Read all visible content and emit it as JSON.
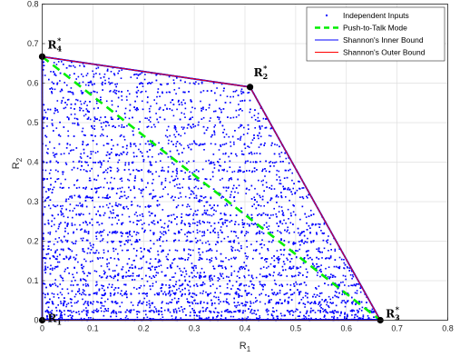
{
  "chart_data": {
    "type": "scatter",
    "xlabel": "R",
    "xlabel_sub": "1",
    "ylabel": "R",
    "ylabel_sub": "2",
    "xlim": [
      0,
      0.8
    ],
    "ylim": [
      0,
      0.8
    ],
    "xticks": [
      "0",
      "0.1",
      "0.2",
      "0.3",
      "0.4",
      "0.5",
      "0.6",
      "0.7",
      "0.8"
    ],
    "yticks": [
      "0",
      "0.1",
      "0.2",
      "0.3",
      "0.4",
      "0.5",
      "0.6",
      "0.7",
      "0.8"
    ],
    "grid": true,
    "legend_position": "top-right",
    "series": [
      {
        "name": "Independent Inputs",
        "style": "points",
        "color": "#0000ff"
      },
      {
        "name": "Push-to-Talk Mode",
        "style": "dashed-line",
        "color": "#00ee00",
        "x": [
          0,
          0.667
        ],
        "y": [
          0.667,
          0
        ]
      },
      {
        "name": "Shannon's Inner Bound",
        "style": "line",
        "color": "#0000ff",
        "x": [
          0,
          0,
          0.41,
          0.667,
          0
        ],
        "y": [
          0,
          0.667,
          0.59,
          0,
          0
        ]
      },
      {
        "name": "Shannon's Outer Bound",
        "style": "line",
        "color": "#ff0000",
        "x": [
          0,
          0,
          0.41,
          0.667,
          0
        ],
        "y": [
          0,
          0.667,
          0.59,
          0,
          0
        ]
      }
    ],
    "corner_points": [
      {
        "label": "R",
        "sub": "1",
        "sup": "",
        "x": 0,
        "y": 0
      },
      {
        "label": "R",
        "sub": "2",
        "sup": "*",
        "x": 0.41,
        "y": 0.59
      },
      {
        "label": "R",
        "sub": "3",
        "sup": "*",
        "x": 0.667,
        "y": 0
      },
      {
        "label": "R",
        "sub": "4",
        "sup": "*",
        "x": 0,
        "y": 0.667
      }
    ]
  }
}
